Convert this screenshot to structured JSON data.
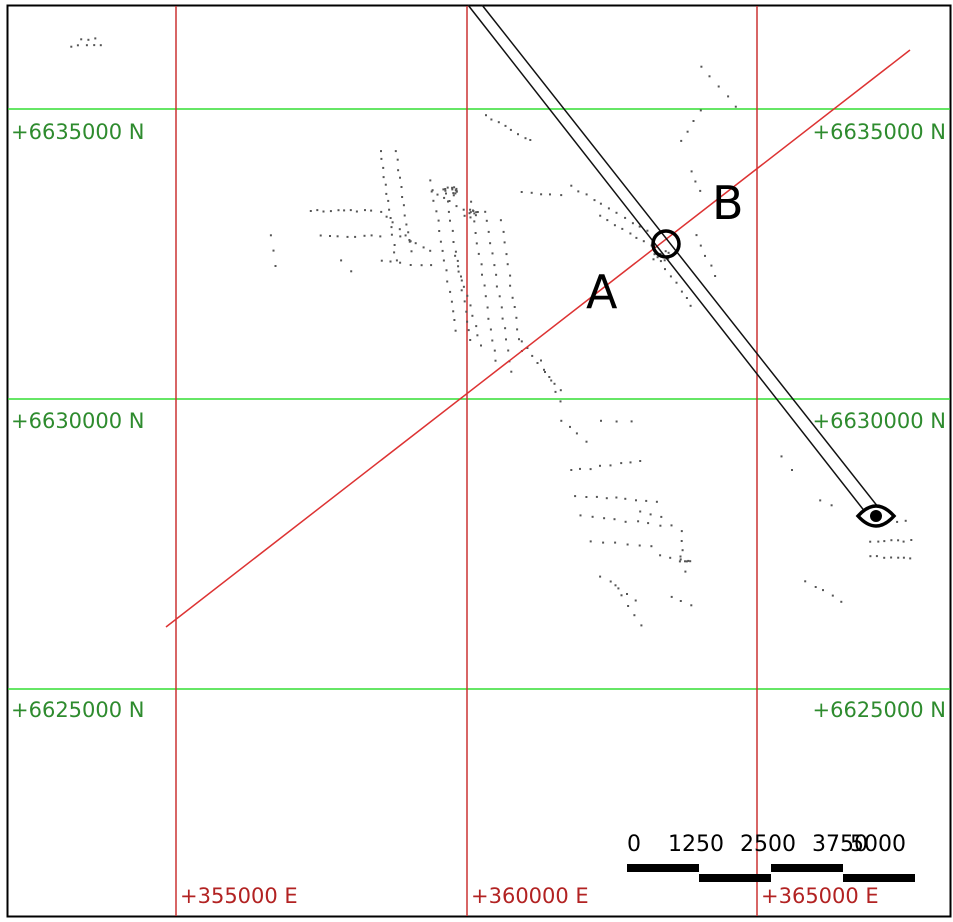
{
  "northing_labels": {
    "n6635000": "+6635000 N",
    "n6630000": "+6630000 N",
    "n6625000": "+6625000 N"
  },
  "easting_labels": {
    "e355000": "+355000 E",
    "e360000": "+360000 E",
    "e365000": "+365000 E"
  },
  "markers": {
    "a": "A",
    "b": "B"
  },
  "scale_bar": {
    "labels": [
      "0",
      "1250",
      "2500",
      "3750",
      "5000"
    ]
  },
  "colors": {
    "northing_grid": "#33dd33",
    "easting_grid": "#cc3333",
    "section_line": "#dd3333",
    "points": "#555555"
  },
  "icons": {
    "viewpoint": "eye-icon",
    "pick_point": "circle-marker-icon"
  }
}
